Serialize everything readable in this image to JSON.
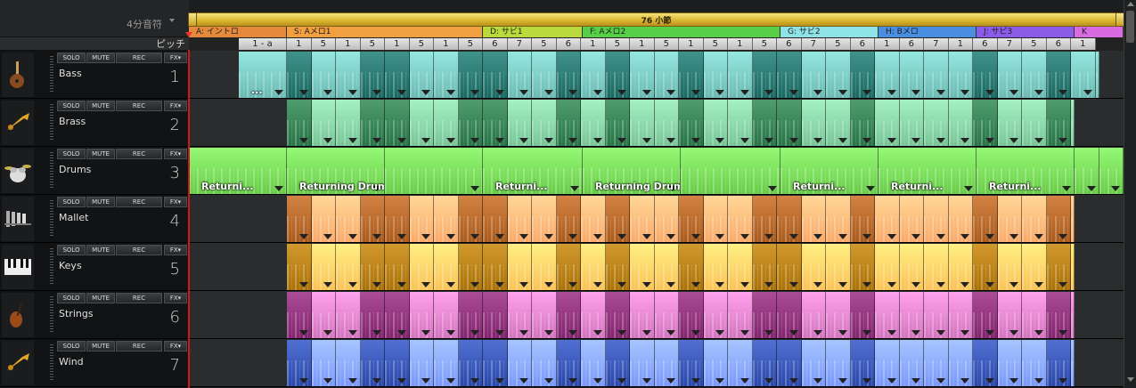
{
  "toolbar": {
    "note_value": "4分音符"
  },
  "song": {
    "label": "76 小節"
  },
  "pitch": {
    "label": "ピッチ"
  },
  "sections": [
    {
      "label": "A: イントロ",
      "color": "#e58a3c"
    },
    {
      "label": "S: Aメロ1",
      "color": "#f0a040"
    },
    {
      "label": "D: サビ1",
      "color": "#b9d93c"
    },
    {
      "label": "F: Aメロ2",
      "color": "#57cf47"
    },
    {
      "label": "G: サビ2",
      "color": "#8ee3e6"
    },
    {
      "label": "H: Bメロ",
      "color": "#4a8ee0"
    },
    {
      "label": "J: サビ3",
      "color": "#8b5ce8"
    },
    {
      "label": "K",
      "color": "#d96be0"
    }
  ],
  "pitch_cells": [
    "1 - a",
    "1",
    "5",
    "1",
    "5",
    "1",
    "5",
    "1",
    "5",
    "6",
    "7",
    "5",
    "6",
    "1",
    "5",
    "1",
    "5",
    "1",
    "5",
    "1",
    "5",
    "6",
    "7",
    "5",
    "6",
    "1",
    "6",
    "7",
    "1",
    "6",
    "7",
    "5",
    "6",
    "1"
  ],
  "tracks": [
    {
      "name": "Bass",
      "number": "1",
      "color": "#5fb0a8",
      "icon": "bass-guitar-icon",
      "labels": [
        "..."
      ]
    },
    {
      "name": "Brass",
      "number": "2",
      "color": "#6dbb8d",
      "icon": "trumpet-icon",
      "labels": []
    },
    {
      "name": "Drums",
      "number": "3",
      "color": "#5fc23f",
      "icon": "drum-kit-icon",
      "labels": [
        "Returni...",
        "Returning Drums C_ogg.H...",
        "Returni...",
        "Returning Drums C_ogg.H...",
        "Returni...",
        "Returni...",
        "Returni..."
      ]
    },
    {
      "name": "Mallet",
      "number": "4",
      "color": "#f0a060",
      "icon": "xylophone-icon",
      "labels": []
    },
    {
      "name": "Keys",
      "number": "5",
      "color": "#f0b84c",
      "icon": "piano-keys-icon",
      "labels": []
    },
    {
      "name": "Strings",
      "number": "6",
      "color": "#c96ab5",
      "icon": "violin-icon",
      "labels": []
    },
    {
      "name": "Wind",
      "number": "7",
      "color": "#6f8ef0",
      "icon": "trumpet-icon",
      "labels": []
    }
  ],
  "buttons": {
    "solo": "SOLO",
    "mute": "MUTE",
    "rec": "REC",
    "fx": "FX"
  }
}
